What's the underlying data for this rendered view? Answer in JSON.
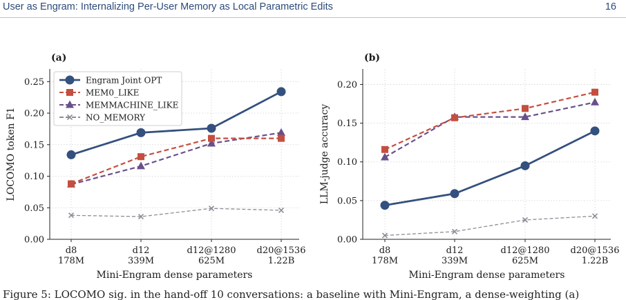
{
  "header": {
    "title": "User as Engram: Internalizing Per-User Memory as Local Parametric Edits",
    "page_number": "16"
  },
  "caption": "Figure 5: LOCOMO sig. in the hand-off 10 conversations: a baseline with Mini-Engram, a dense-weighting (a)",
  "chart_data": [
    {
      "type": "line",
      "panel_label": "(a)",
      "categories": [
        "d8\n178M",
        "d12\n339M",
        "d12@1280\n625M",
        "d20@1536\n1.22B"
      ],
      "xlabel": "Mini-Engram dense parameters",
      "ylabel": "LOCOMO token F1",
      "ylim": [
        0,
        0.27
      ],
      "yticks": [
        "0.00",
        "0.05",
        "0.10",
        "0.15",
        "0.20",
        "0.25"
      ],
      "ytick_values": [
        0,
        0.05,
        0.1,
        0.15,
        0.2,
        0.25
      ],
      "grid": true,
      "legend": "top-left",
      "series": [
        {
          "name": "Engram Joint OPT",
          "values": [
            0.134,
            0.169,
            0.176,
            0.234
          ],
          "color": "#34507e",
          "style": "solid",
          "marker": "circle"
        },
        {
          "name": "MEM0_LIKE",
          "values": [
            0.088,
            0.131,
            0.16,
            0.16
          ],
          "color": "#c44e3f",
          "style": "dashed",
          "marker": "square"
        },
        {
          "name": "MEMMACHINE_LIKE",
          "values": [
            0.087,
            0.116,
            0.152,
            0.169
          ],
          "color": "#6a4f8a",
          "style": "dashed",
          "marker": "triangle"
        },
        {
          "name": "NO_MEMORY",
          "values": [
            0.038,
            0.036,
            0.049,
            0.046
          ],
          "color": "#8c8c96",
          "style": "dashed",
          "marker": "x"
        }
      ]
    },
    {
      "type": "line",
      "panel_label": "(b)",
      "categories": [
        "d8\n178M",
        "d12\n339M",
        "d12@1280\n625M",
        "d20@1536\n1.22B"
      ],
      "xlabel": "Mini-Engram dense parameters",
      "ylabel": "LLM-judge accuracy",
      "ylim": [
        0,
        0.22
      ],
      "yticks": [
        "0.00",
        "0.05",
        "0.10",
        "0.15",
        "0.20"
      ],
      "ytick_values": [
        0,
        0.05,
        0.1,
        0.15,
        0.2
      ],
      "grid": true,
      "legend": "none",
      "series": [
        {
          "values": [
            0.044,
            0.059,
            0.095,
            0.14
          ],
          "color": "#34507e",
          "style": "solid",
          "marker": "circle"
        },
        {
          "values": [
            0.116,
            0.157,
            0.169,
            0.19
          ],
          "color": "#c44e3f",
          "style": "dashed",
          "marker": "square"
        },
        {
          "values": [
            0.106,
            0.158,
            0.158,
            0.177
          ],
          "color": "#6a4f8a",
          "style": "dashed",
          "marker": "triangle"
        },
        {
          "values": [
            0.005,
            0.01,
            0.025,
            0.03
          ],
          "color": "#8c8c96",
          "style": "dashed",
          "marker": "x"
        }
      ]
    }
  ]
}
